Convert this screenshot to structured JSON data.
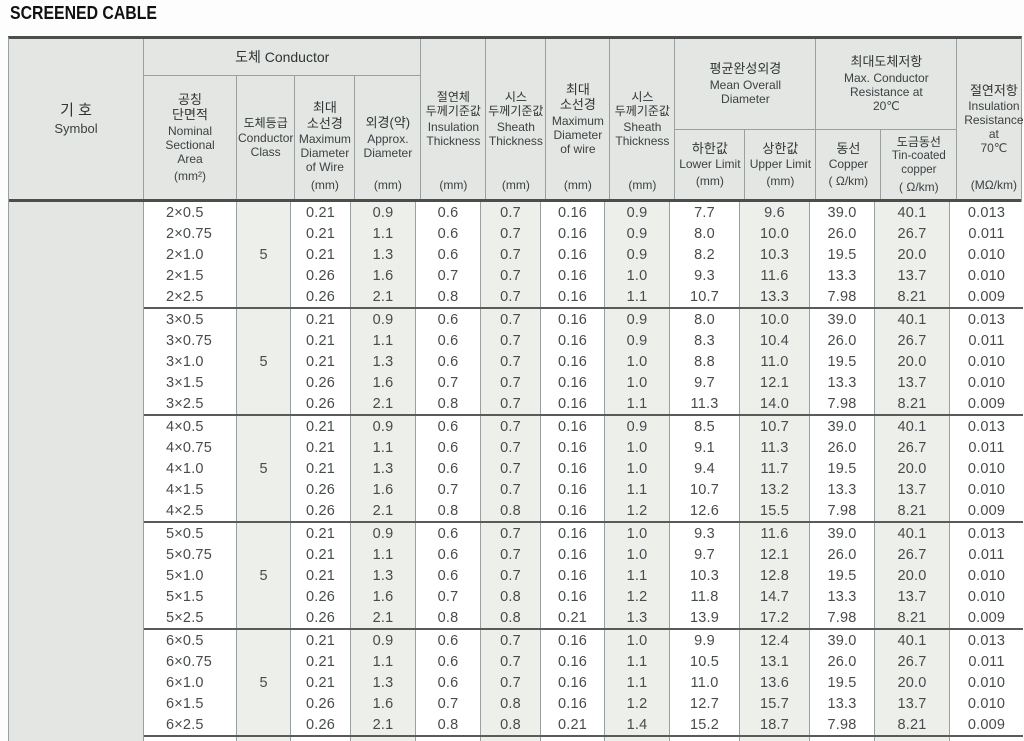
{
  "title": "SCREENED CABLE",
  "table": {
    "header": {
      "symbol": {
        "ko": "기  호",
        "en": "Symbol"
      },
      "conductor_group": "도체 Conductor",
      "nominal": {
        "ko": "공칭\n단면적",
        "en": "Nominal\nSectional\nArea",
        "unit": "(mm²)"
      },
      "conductor_class": {
        "ko": "도체등급",
        "en": "Conductor\nClass"
      },
      "max_wire_dia": {
        "ko": "최대\n소선경",
        "en": "Maximum\nDiameter\nof Wire",
        "unit": "(mm)"
      },
      "approx_dia": {
        "ko": "외경(약)",
        "en": "Approx.\nDiameter",
        "unit": "(mm)"
      },
      "insulation_thickness": {
        "ko": "절연체\n두께기준값",
        "en": "Insulation\nThickness",
        "unit": "(mm)"
      },
      "sheath_thickness": {
        "ko": "시스\n두께기준값",
        "en": "Sheath\nThickness",
        "unit": "(mm)"
      },
      "max_wire_dia_2": {
        "ko": "최대\n소선경",
        "en": "Maximum\nDiameter\nof wire",
        "unit": "(mm)"
      },
      "sheath_thickness_2": {
        "ko": "시스\n두께기준값",
        "en": "Sheath\nThickness",
        "unit": "(mm)"
      },
      "mean_overall": {
        "ko": "평균완성외경",
        "en": "Mean Overall\nDiameter"
      },
      "lower_limit": {
        "ko": "하한값",
        "en": "Lower Limit",
        "unit": "(mm)"
      },
      "upper_limit": {
        "ko": "상한값",
        "en": "Upper Limit",
        "unit": "(mm)"
      },
      "max_resistance": {
        "ko": "최대도체저항",
        "en": "Max. Conductor\nResistance at\n20℃"
      },
      "copper": {
        "ko": "동선",
        "en": "Copper",
        "unit": "( Ω/km)"
      },
      "tin_coated": {
        "ko": "도금동선",
        "en": "Tin-coated\ncopper",
        "unit": "( Ω/km)"
      },
      "insulation_resistance": {
        "ko": "절연저항",
        "en": "Insulation\nResistance\nat\n70℃",
        "unit": "(MΩ/km)"
      }
    },
    "value_column_keys": [
      "max_wire_dia",
      "approx_dia",
      "insulation_thickness",
      "sheath_thickness",
      "max_wire_dia_2",
      "sheath_thickness_2",
      "lower_limit",
      "upper_limit",
      "copper",
      "tin_coated",
      "insulation_resistance"
    ],
    "groups": [
      {
        "conductor_class": "5",
        "rows": [
          {
            "nominal": "2×0.5",
            "values": [
              "0.21",
              "0.9",
              "0.6",
              "0.7",
              "0.16",
              "0.9",
              "7.7",
              "9.6",
              "39.0",
              "40.1",
              "0.013"
            ]
          },
          {
            "nominal": "2×0.75",
            "values": [
              "0.21",
              "1.1",
              "0.6",
              "0.7",
              "0.16",
              "0.9",
              "8.0",
              "10.0",
              "26.0",
              "26.7",
              "0.011"
            ]
          },
          {
            "nominal": "2×1.0",
            "values": [
              "0.21",
              "1.3",
              "0.6",
              "0.7",
              "0.16",
              "0.9",
              "8.2",
              "10.3",
              "19.5",
              "20.0",
              "0.010"
            ]
          },
          {
            "nominal": "2×1.5",
            "values": [
              "0.26",
              "1.6",
              "0.7",
              "0.7",
              "0.16",
              "1.0",
              "9.3",
              "11.6",
              "13.3",
              "13.7",
              "0.010"
            ]
          },
          {
            "nominal": "2×2.5",
            "values": [
              "0.26",
              "2.1",
              "0.8",
              "0.7",
              "0.16",
              "1.1",
              "10.7",
              "13.3",
              "7.98",
              "8.21",
              "0.009"
            ]
          }
        ]
      },
      {
        "conductor_class": "5",
        "rows": [
          {
            "nominal": "3×0.5",
            "values": [
              "0.21",
              "0.9",
              "0.6",
              "0.7",
              "0.16",
              "0.9",
              "8.0",
              "10.0",
              "39.0",
              "40.1",
              "0.013"
            ]
          },
          {
            "nominal": "3×0.75",
            "values": [
              "0.21",
              "1.1",
              "0.6",
              "0.7",
              "0.16",
              "0.9",
              "8.3",
              "10.4",
              "26.0",
              "26.7",
              "0.011"
            ]
          },
          {
            "nominal": "3×1.0",
            "values": [
              "0.21",
              "1.3",
              "0.6",
              "0.7",
              "0.16",
              "1.0",
              "8.8",
              "11.0",
              "19.5",
              "20.0",
              "0.010"
            ]
          },
          {
            "nominal": "3×1.5",
            "values": [
              "0.26",
              "1.6",
              "0.7",
              "0.7",
              "0.16",
              "1.0",
              "9.7",
              "12.1",
              "13.3",
              "13.7",
              "0.010"
            ]
          },
          {
            "nominal": "3×2.5",
            "values": [
              "0.26",
              "2.1",
              "0.8",
              "0.7",
              "0.16",
              "1.1",
              "11.3",
              "14.0",
              "7.98",
              "8.21",
              "0.009"
            ]
          }
        ]
      },
      {
        "conductor_class": "5",
        "rows": [
          {
            "nominal": "4×0.5",
            "values": [
              "0.21",
              "0.9",
              "0.6",
              "0.7",
              "0.16",
              "0.9",
              "8.5",
              "10.7",
              "39.0",
              "40.1",
              "0.013"
            ]
          },
          {
            "nominal": "4×0.75",
            "values": [
              "0.21",
              "1.1",
              "0.6",
              "0.7",
              "0.16",
              "1.0",
              "9.1",
              "11.3",
              "26.0",
              "26.7",
              "0.011"
            ]
          },
          {
            "nominal": "4×1.0",
            "values": [
              "0.21",
              "1.3",
              "0.6",
              "0.7",
              "0.16",
              "1.0",
              "9.4",
              "11.7",
              "19.5",
              "20.0",
              "0.010"
            ]
          },
          {
            "nominal": "4×1.5",
            "values": [
              "0.26",
              "1.6",
              "0.7",
              "0.7",
              "0.16",
              "1.1",
              "10.7",
              "13.2",
              "13.3",
              "13.7",
              "0.010"
            ]
          },
          {
            "nominal": "4×2.5",
            "values": [
              "0.26",
              "2.1",
              "0.8",
              "0.8",
              "0.16",
              "1.2",
              "12.6",
              "15.5",
              "7.98",
              "8.21",
              "0.009"
            ]
          }
        ]
      },
      {
        "conductor_class": "5",
        "rows": [
          {
            "nominal": "5×0.5",
            "values": [
              "0.21",
              "0.9",
              "0.6",
              "0.7",
              "0.16",
              "1.0",
              "9.3",
              "11.6",
              "39.0",
              "40.1",
              "0.013"
            ]
          },
          {
            "nominal": "5×0.75",
            "values": [
              "0.21",
              "1.1",
              "0.6",
              "0.7",
              "0.16",
              "1.0",
              "9.7",
              "12.1",
              "26.0",
              "26.7",
              "0.011"
            ]
          },
          {
            "nominal": "5×1.0",
            "values": [
              "0.21",
              "1.3",
              "0.6",
              "0.7",
              "0.16",
              "1.1",
              "10.3",
              "12.8",
              "19.5",
              "20.0",
              "0.010"
            ]
          },
          {
            "nominal": "5×1.5",
            "values": [
              "0.26",
              "1.6",
              "0.7",
              "0.8",
              "0.16",
              "1.2",
              "11.8",
              "14.7",
              "13.3",
              "13.7",
              "0.010"
            ]
          },
          {
            "nominal": "5×2.5",
            "values": [
              "0.26",
              "2.1",
              "0.8",
              "0.8",
              "0.21",
              "1.3",
              "13.9",
              "17.2",
              "7.98",
              "8.21",
              "0.009"
            ]
          }
        ]
      },
      {
        "conductor_class": "5",
        "rows": [
          {
            "nominal": "6×0.5",
            "values": [
              "0.21",
              "0.9",
              "0.6",
              "0.7",
              "0.16",
              "1.0",
              "9.9",
              "12.4",
              "39.0",
              "40.1",
              "0.013"
            ]
          },
          {
            "nominal": "6×0.75",
            "values": [
              "0.21",
              "1.1",
              "0.6",
              "0.7",
              "0.16",
              "1.1",
              "10.5",
              "13.1",
              "26.0",
              "26.7",
              "0.011"
            ]
          },
          {
            "nominal": "6×1.0",
            "values": [
              "0.21",
              "1.3",
              "0.6",
              "0.7",
              "0.16",
              "1.1",
              "11.0",
              "13.6",
              "19.5",
              "20.0",
              "0.010"
            ]
          },
          {
            "nominal": "6×1.5",
            "values": [
              "0.26",
              "1.6",
              "0.7",
              "0.8",
              "0.16",
              "1.2",
              "12.7",
              "15.7",
              "13.3",
              "13.7",
              "0.010"
            ]
          },
          {
            "nominal": "6×2.5",
            "values": [
              "0.26",
              "2.1",
              "0.8",
              "0.8",
              "0.21",
              "1.4",
              "15.2",
              "18.7",
              "7.98",
              "8.21",
              "0.009"
            ]
          }
        ]
      }
    ]
  },
  "colors": {
    "header_bg": "#e3e6e2",
    "shaded_column_bg": "#edefeb",
    "border_dark": "#4d4d4d",
    "border_light": "#9aa0a0"
  }
}
